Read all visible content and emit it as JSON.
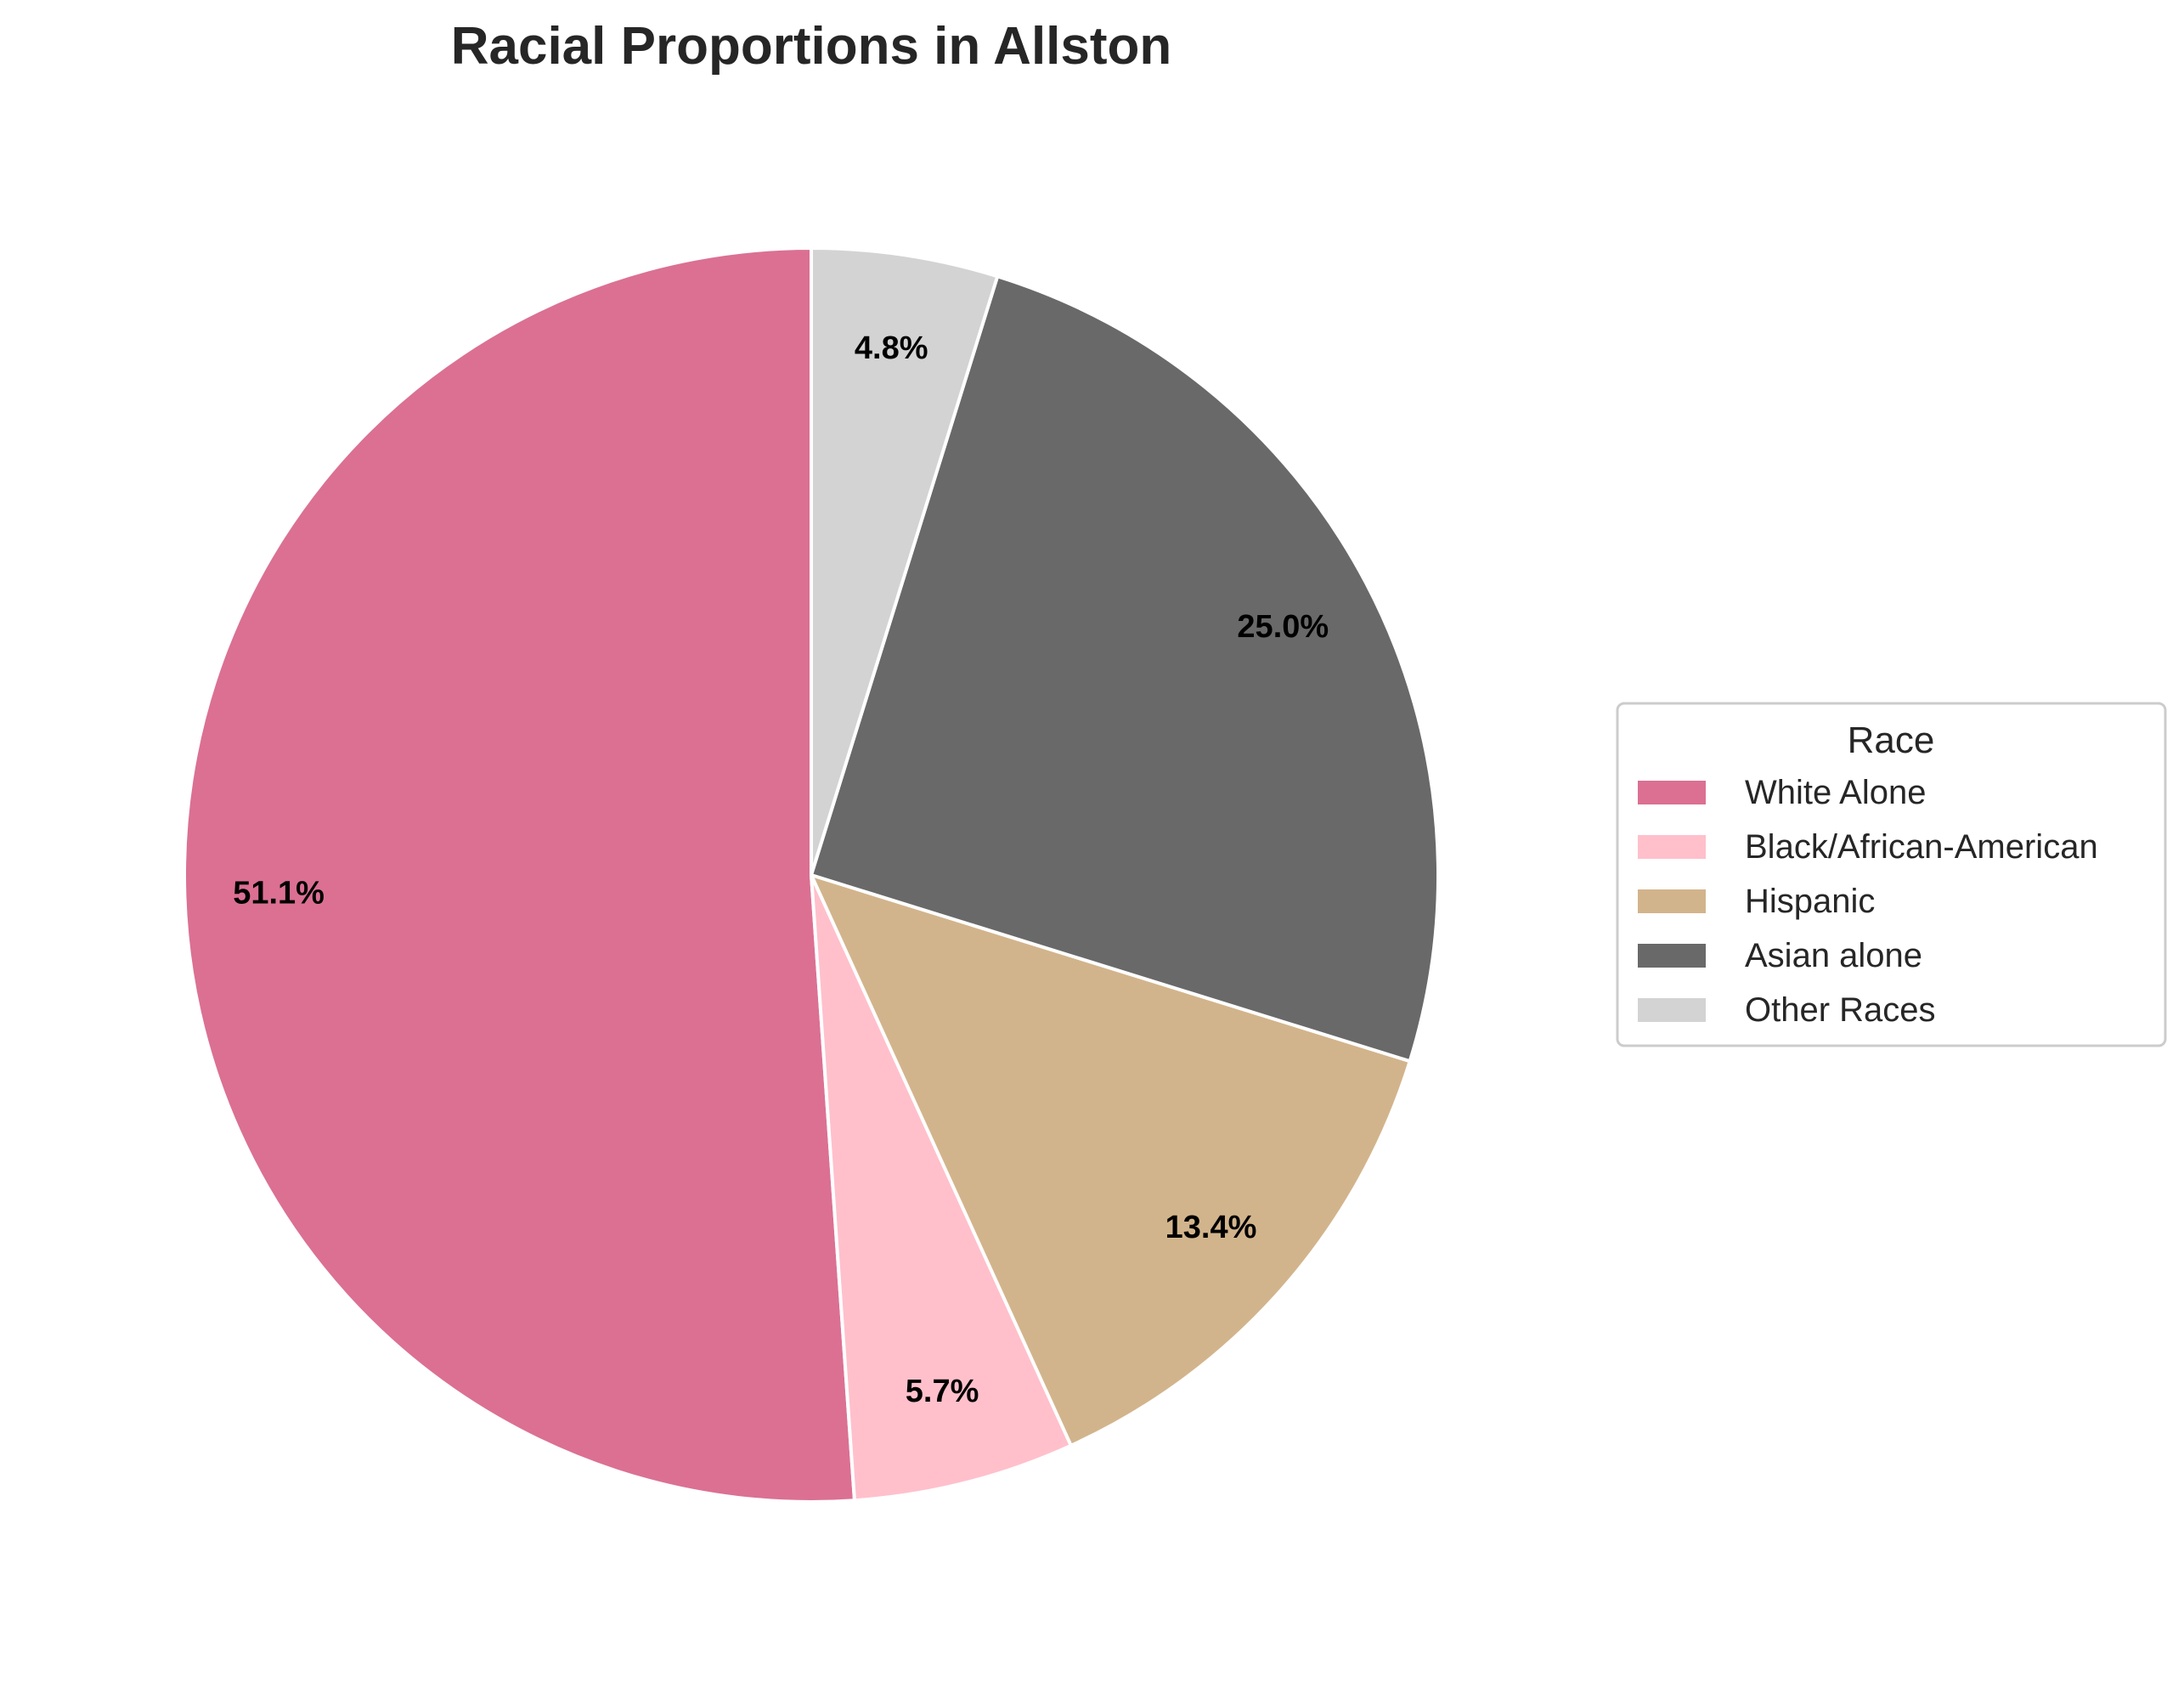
{
  "chart_data": {
    "type": "pie",
    "title": "Racial Proportions in Allston",
    "categories": [
      "White Alone",
      "Black/African-American",
      "Hispanic",
      "Asian alone",
      "Other Races"
    ],
    "values": [
      51.1,
      5.7,
      13.4,
      25.0,
      4.8
    ],
    "value_labels": [
      "51.1%",
      "5.7%",
      "13.4%",
      "25.0%",
      "4.8%"
    ],
    "colors": [
      "#DB7093",
      "#FFC0CB",
      "#D2B48C",
      "#696969",
      "#D3D3D3"
    ],
    "start_angle": "top (12 o'clock)",
    "direction": "counterclockwise",
    "slice_edge_color": "#FFFFFF",
    "legend": {
      "title": "Race",
      "placement": "center-right"
    }
  }
}
